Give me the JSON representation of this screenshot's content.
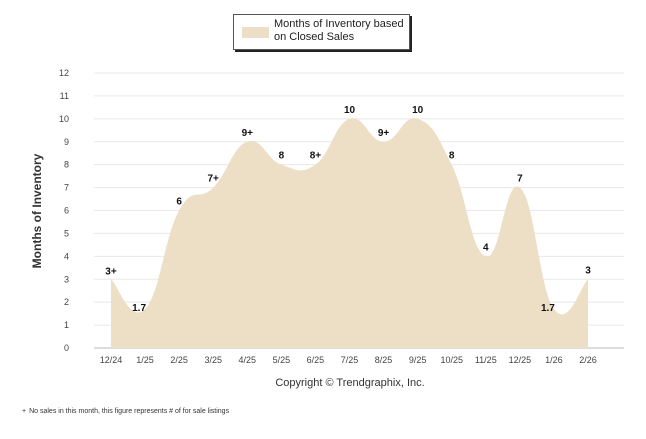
{
  "chart_data": {
    "type": "area",
    "title": "",
    "xlabel": "",
    "ylabel": "Months of Inventory",
    "ylim": [
      0,
      12
    ],
    "yticks": [
      "0",
      "1",
      "2",
      "3",
      "4",
      "5",
      "6",
      "7",
      "8",
      "9",
      "10",
      "11",
      "12"
    ],
    "grid": true,
    "categories": [
      "12/24",
      "1/25",
      "2/25",
      "3/25",
      "4/25",
      "5/25",
      "6/25",
      "7/25",
      "8/25",
      "9/25",
      "10/25",
      "11/25",
      "12/25",
      "1/26",
      "2/26"
    ],
    "series": [
      {
        "name": "Months of Inventory based on Closed Sales",
        "color": "#ecdfc6",
        "values": [
          3,
          1.7,
          6,
          7,
          9,
          8,
          8,
          10,
          9,
          10,
          8,
          4,
          7,
          1.7,
          3
        ],
        "labels": [
          "3+",
          "1.7",
          "6",
          "7+",
          "9+",
          "8",
          "8+",
          "10",
          "9+",
          "10",
          "8",
          "4",
          "7",
          "1.7",
          "3"
        ]
      }
    ],
    "legend": {
      "position": "top-center",
      "label": "Months of Inventory based on Closed Sales"
    }
  },
  "copyright": "Copyright © Trendgraphix, Inc.",
  "footnote": {
    "mark": "+",
    "text": "No sales in this month, this figure represents # of for sale listings"
  }
}
